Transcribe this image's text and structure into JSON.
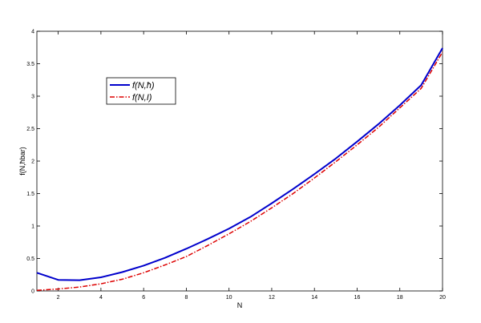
{
  "chart_data": {
    "type": "line",
    "title": "",
    "xlabel": "N",
    "ylabel": "f(N,ħbar)",
    "xlim": [
      1,
      20
    ],
    "ylim": [
      0,
      4
    ],
    "xticks": [
      2,
      4,
      6,
      8,
      10,
      12,
      14,
      16,
      18,
      20
    ],
    "yticks": [
      0,
      0.5,
      1,
      1.5,
      2,
      2.5,
      3,
      3.5,
      4
    ],
    "xtick_labels": [
      "2",
      "4",
      "6",
      "8",
      "10",
      "12",
      "14",
      "16",
      "18",
      "20"
    ],
    "ytick_labels": [
      "0",
      "0.5",
      "1",
      "1.5",
      "2",
      "2.5",
      "3",
      "3.5",
      "4"
    ],
    "grid": false,
    "legend_position": "upper-left",
    "x": [
      1,
      2,
      3,
      4,
      5,
      6,
      7,
      8,
      9,
      10,
      11,
      12,
      13,
      14,
      15,
      16,
      17,
      18,
      19,
      20
    ],
    "series": [
      {
        "name": "f(N,ħ)",
        "color": "#0000cc",
        "style": "solid",
        "values": [
          0.28,
          0.17,
          0.165,
          0.21,
          0.29,
          0.39,
          0.51,
          0.65,
          0.8,
          0.96,
          1.14,
          1.35,
          1.57,
          1.8,
          2.04,
          2.3,
          2.57,
          2.86,
          3.17,
          3.74
        ]
      },
      {
        "name": "f(N,I)",
        "color": "#dd0000",
        "style": "dashdot",
        "values": [
          0.01,
          0.03,
          0.06,
          0.11,
          0.18,
          0.28,
          0.4,
          0.53,
          0.7,
          0.88,
          1.07,
          1.28,
          1.5,
          1.74,
          1.99,
          2.25,
          2.52,
          2.82,
          3.12,
          3.68
        ]
      }
    ]
  }
}
